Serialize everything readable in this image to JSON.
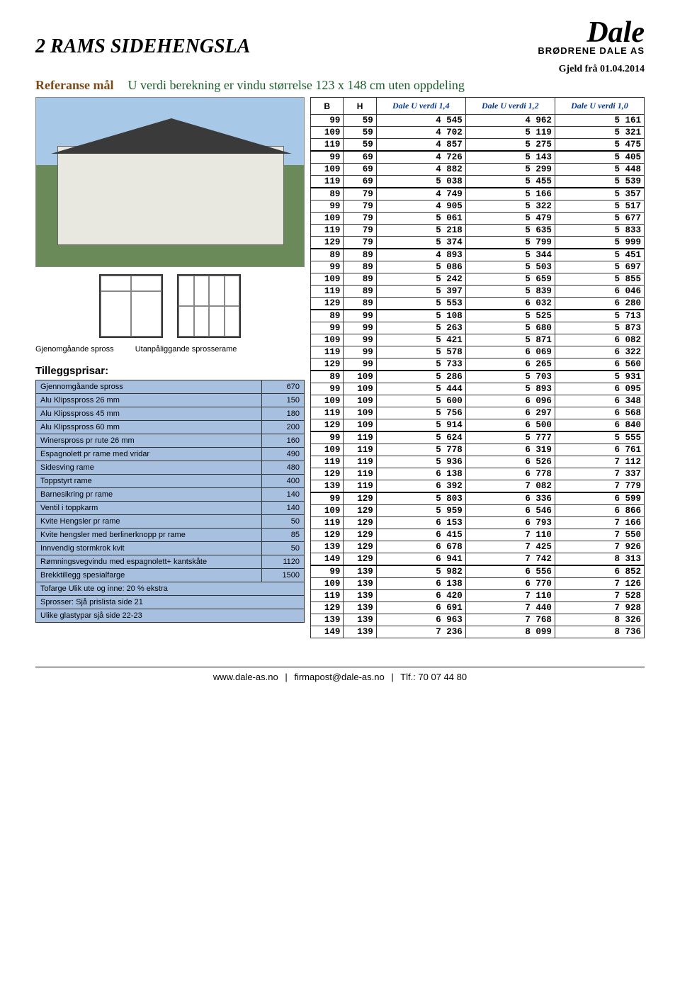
{
  "title": "2 RAMS SIDEHENGSLA",
  "logo": {
    "name": "Dale",
    "sub": "BRØDRENE DALE AS"
  },
  "gjeld": "Gjeld frå 01.04.2014",
  "reference": {
    "label": "Referanse mål",
    "text": "U verdi berekning er vindu størrelse 123 x  148 cm uten oppdeling"
  },
  "spross_labels": [
    "Gjenomgåande spross",
    "Utanpåliggande sprosserame"
  ],
  "tillegg_title": "Tilleggsprisar:",
  "tillegg": [
    {
      "name": "Gjennomgåande spross",
      "price": 670
    },
    {
      "name": "Alu Klipsspross 26 mm",
      "price": 150
    },
    {
      "name": "Alu Klipsspross 45 mm",
      "price": 180
    },
    {
      "name": "Alu Klipsspross 60 mm",
      "price": 200
    },
    {
      "name": "Winerspross pr rute  26 mm",
      "price": 160
    },
    {
      "name": "Espagnolett pr rame med vridar",
      "price": 490
    },
    {
      "name": "Sidesving rame",
      "price": 480
    },
    {
      "name": "Toppstyrt rame",
      "price": 400
    },
    {
      "name": "Barnesikring pr rame",
      "price": 140
    },
    {
      "name": "Ventil i toppkarm",
      "price": 140
    },
    {
      "name": "Kvite Hengsler pr rame",
      "price": 50
    },
    {
      "name": "Kvite hengsler med berlinerknopp pr rame",
      "price": 85
    },
    {
      "name": "Innvendig stormkrok kvit",
      "price": 50
    },
    {
      "name": "Rømningsvegvindu med espagnolett+ kantskåte",
      "price": 1120
    },
    {
      "name": "Brekktillegg spesialfarge",
      "price": 1500
    },
    {
      "name": "Tofarge Ulik ute og inne: 20 % ekstra",
      "price": ""
    },
    {
      "name": "Sprosser: Sjå prislista side 21",
      "price": ""
    },
    {
      "name": "Ulike glastypar sjå side 22-23",
      "price": ""
    }
  ],
  "main_table": {
    "columns": [
      "B",
      "H",
      "Dale U verdi 1,4",
      "Dale U verdi 1,2",
      "Dale  U verdi 1,0"
    ],
    "colors": {
      "header_text": "#0a3a8a",
      "border": "#333333",
      "tillegg_bg": "#a8c0e0"
    },
    "groups": [
      [
        [
          99,
          59,
          4545,
          4962,
          5161
        ],
        [
          109,
          59,
          4702,
          5119,
          5321
        ],
        [
          119,
          59,
          4857,
          5275,
          5475
        ]
      ],
      [
        [
          99,
          69,
          4726,
          5143,
          5405
        ],
        [
          109,
          69,
          4882,
          5299,
          5448
        ],
        [
          119,
          69,
          5038,
          5455,
          5539
        ]
      ],
      [
        [
          89,
          79,
          4749,
          5166,
          5357
        ],
        [
          99,
          79,
          4905,
          5322,
          5517
        ],
        [
          109,
          79,
          5061,
          5479,
          5677
        ],
        [
          119,
          79,
          5218,
          5635,
          5833
        ],
        [
          129,
          79,
          5374,
          5799,
          5999
        ]
      ],
      [
        [
          89,
          89,
          4893,
          5344,
          5451
        ],
        [
          99,
          89,
          5086,
          5503,
          5697
        ],
        [
          109,
          89,
          5242,
          5659,
          5855
        ],
        [
          119,
          89,
          5397,
          5839,
          6046
        ],
        [
          129,
          89,
          5553,
          6032,
          6280
        ]
      ],
      [
        [
          89,
          99,
          5108,
          5525,
          5713
        ],
        [
          99,
          99,
          5263,
          5680,
          5873
        ],
        [
          109,
          99,
          5421,
          5871,
          6082
        ],
        [
          119,
          99,
          5578,
          6069,
          6322
        ],
        [
          129,
          99,
          5733,
          6265,
          6560
        ]
      ],
      [
        [
          89,
          109,
          5286,
          5703,
          5931
        ],
        [
          99,
          109,
          5444,
          5893,
          6095
        ],
        [
          109,
          109,
          5600,
          6096,
          6348
        ],
        [
          119,
          109,
          5756,
          6297,
          6568
        ],
        [
          129,
          109,
          5914,
          6500,
          6840
        ]
      ],
      [
        [
          99,
          119,
          5624,
          5777,
          5555
        ],
        [
          109,
          119,
          5778,
          6319,
          6761
        ],
        [
          119,
          119,
          5936,
          6526,
          7112
        ],
        [
          129,
          119,
          6138,
          6778,
          7337
        ],
        [
          139,
          119,
          6392,
          7082,
          7779
        ]
      ],
      [
        [
          99,
          129,
          5803,
          6336,
          6599
        ],
        [
          109,
          129,
          5959,
          6546,
          6866
        ],
        [
          119,
          129,
          6153,
          6793,
          7166
        ],
        [
          129,
          129,
          6415,
          7110,
          7550
        ],
        [
          139,
          129,
          6678,
          7425,
          7926
        ],
        [
          149,
          129,
          6941,
          7742,
          8313
        ]
      ],
      [
        [
          99,
          139,
          5982,
          6556,
          6852
        ],
        [
          109,
          139,
          6138,
          6770,
          7126
        ],
        [
          119,
          139,
          6420,
          7110,
          7528
        ],
        [
          129,
          139,
          6691,
          7440,
          7928
        ],
        [
          139,
          139,
          6963,
          7768,
          8326
        ],
        [
          149,
          139,
          7236,
          8099,
          8736
        ]
      ]
    ]
  },
  "footer": {
    "web": "www.dale-as.no",
    "mail": "firmapost@dale-as.no",
    "tlf": "Tlf.: 70 07 44 80"
  }
}
